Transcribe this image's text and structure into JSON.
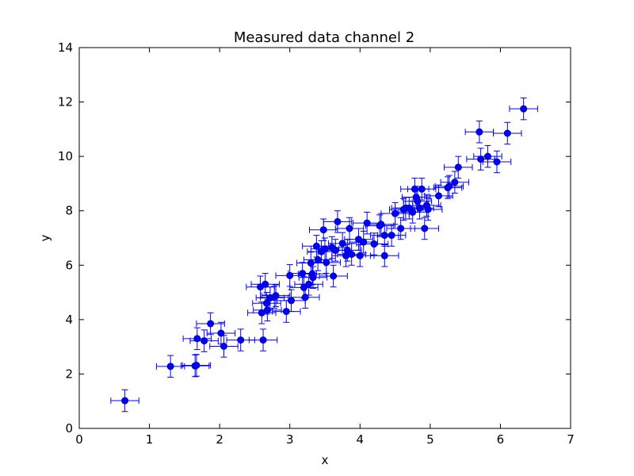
{
  "chart_data": {
    "type": "scatter",
    "title": "Measured data channel 2",
    "xlabel": "x",
    "ylabel": "y",
    "xlim": [
      0,
      7
    ],
    "ylim": [
      0,
      14
    ],
    "xticks": [
      0,
      1,
      2,
      3,
      4,
      5,
      6,
      7
    ],
    "yticks": [
      0,
      2,
      4,
      6,
      8,
      10,
      12,
      14
    ],
    "grid": false,
    "legend": "none",
    "error_bars": {
      "x_err": 0.2,
      "y_err": 0.4
    },
    "colors": {
      "series": "#0000ff",
      "axes": "#000000",
      "background": "#ffffff"
    },
    "x": [
      0.65,
      1.3,
      1.65,
      1.67,
      1.68,
      1.78,
      1.87,
      2.02,
      2.06,
      2.3,
      2.62,
      2.6,
      2.58,
      2.67,
      2.65,
      2.68,
      2.72,
      2.8,
      2.78,
      2.95,
      3.0,
      3.02,
      3.18,
      3.2,
      3.22,
      3.27,
      3.3,
      3.32,
      3.33,
      3.38,
      3.4,
      3.45,
      3.48,
      3.5,
      3.52,
      3.6,
      3.62,
      3.65,
      3.68,
      3.75,
      3.8,
      3.82,
      3.85,
      3.88,
      3.98,
      4.0,
      4.05,
      4.1,
      4.2,
      4.28,
      4.3,
      4.35,
      4.35,
      4.45,
      4.5,
      4.58,
      4.62,
      4.65,
      4.7,
      4.75,
      4.78,
      4.8,
      4.82,
      4.85,
      4.88,
      4.92,
      4.95,
      4.97,
      5.12,
      5.25,
      5.27,
      5.35,
      5.4,
      5.7,
      5.72,
      5.82,
      5.95,
      6.1,
      6.33
    ],
    "y": [
      1.02,
      2.28,
      2.3,
      2.32,
      3.3,
      3.22,
      3.85,
      3.5,
      3.02,
      3.25,
      3.25,
      4.25,
      5.2,
      4.6,
      5.3,
      4.35,
      4.8,
      4.88,
      4.82,
      4.3,
      5.62,
      4.7,
      5.7,
      5.18,
      4.82,
      5.3,
      6.08,
      5.68,
      5.55,
      6.7,
      6.2,
      6.5,
      7.3,
      6.6,
      6.1,
      6.65,
      5.6,
      6.55,
      7.6,
      6.8,
      6.35,
      6.55,
      7.35,
      6.4,
      6.95,
      6.35,
      6.85,
      7.55,
      6.78,
      7.45,
      7.5,
      7.1,
      6.35,
      7.1,
      7.9,
      7.35,
      8.05,
      8.1,
      8.1,
      7.95,
      8.8,
      8.5,
      8.35,
      8.1,
      8.8,
      7.35,
      8.2,
      8.05,
      8.55,
      8.85,
      8.9,
      9.05,
      9.6,
      10.9,
      9.9,
      10.0,
      9.8,
      10.85,
      11.75
    ]
  }
}
